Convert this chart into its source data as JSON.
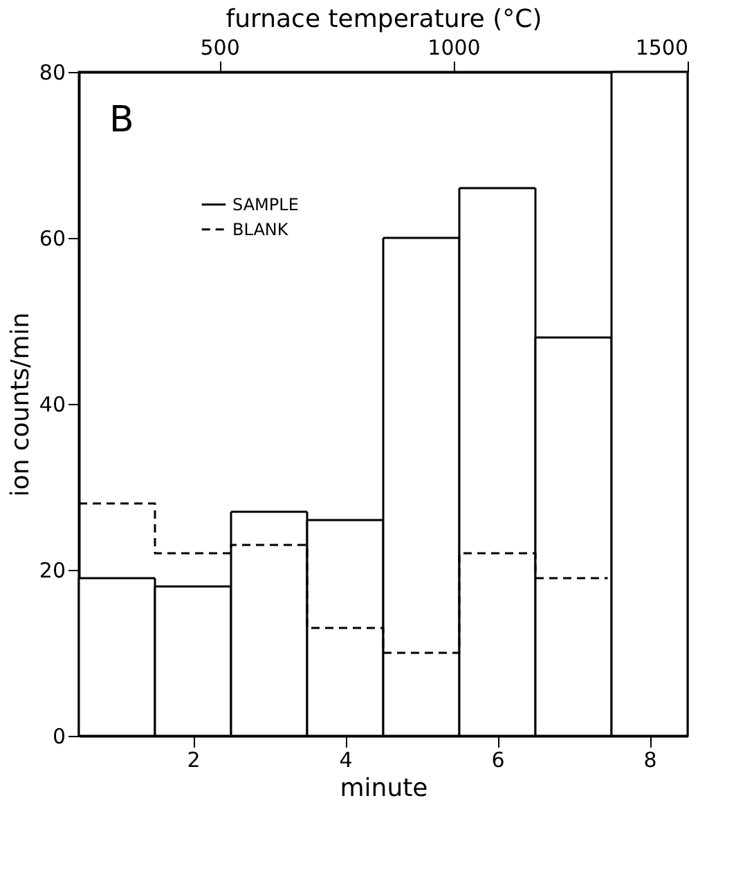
{
  "chart_data": {
    "type": "histogram",
    "xlabel": "minute",
    "ylabel": "ion counts/min",
    "x2label": "furnace temperature (°C)",
    "bins": [
      0.5,
      1.5,
      2.5,
      3.5,
      4.5,
      5.5,
      6.5,
      7.5,
      8.5
    ],
    "series": [
      {
        "name": "SAMPLE",
        "color": "#000000",
        "line_style": "solid",
        "values": [
          19,
          18,
          27,
          26,
          60,
          66,
          48,
          80
        ]
      },
      {
        "name": "BLANK",
        "type": "step",
        "x": [
          0.5,
          1.5,
          2.5,
          3.5,
          4.5,
          5.5,
          6.5,
          7.45
        ],
        "color": "#000000",
        "line_style": "dashed",
        "values": [
          28,
          22,
          23,
          13,
          10,
          22,
          19,
          19
        ]
      }
    ],
    "xlim": [
      0.5,
      8.5
    ],
    "xticks": [
      2,
      4,
      6,
      8
    ],
    "x2lim": [
      200,
      1500
    ],
    "x2ticks": [
      500,
      1000,
      1500
    ],
    "ylim": [
      0,
      80
    ],
    "yticks": [
      0,
      20,
      40,
      60,
      80
    ],
    "annotations": [
      "B"
    ],
    "legend": "top left",
    "grid": false
  }
}
